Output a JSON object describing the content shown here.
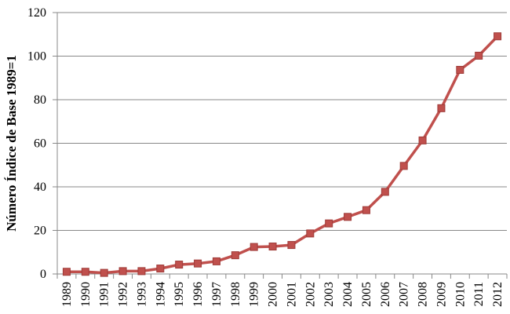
{
  "chart_data": {
    "type": "line",
    "title": "",
    "xlabel": "",
    "ylabel": "Número Índice de Base 1989=1",
    "ylim": [
      0,
      120
    ],
    "yticks": [
      0,
      20,
      40,
      60,
      80,
      100,
      120
    ],
    "grid": true,
    "legend": "none",
    "categories": [
      "1989",
      "1990",
      "1991",
      "1992",
      "1993",
      "1994",
      "1995",
      "1996",
      "1997",
      "1998",
      "1999",
      "2000",
      "2001",
      "2002",
      "2003",
      "2004",
      "2005",
      "2006",
      "2007",
      "2008",
      "2009",
      "2010",
      "2011",
      "2012"
    ],
    "series": [
      {
        "color": "#C0504D",
        "marker": "square",
        "values": [
          1,
          1,
          0.5,
          1.3,
          1.3,
          2.5,
          4.3,
          4.8,
          5.8,
          8.6,
          12.4,
          12.6,
          13.3,
          18.6,
          23.2,
          26.2,
          29.3,
          37.7,
          49.6,
          61.3,
          76.1,
          93.7,
          100.2,
          109.1
        ]
      }
    ],
    "colors": {
      "grid": "#888888",
      "axis": "#888888",
      "line": "#C0504D",
      "marker_fill": "#C0504D",
      "marker_stroke": "#9E3B38"
    }
  }
}
